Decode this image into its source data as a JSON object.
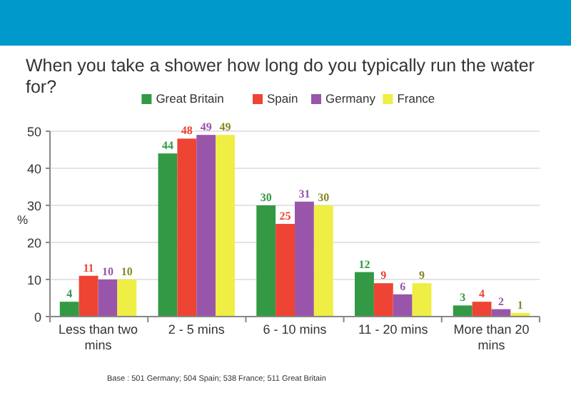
{
  "chart_data": {
    "type": "bar",
    "title": "When you take a shower how long do you typically run the water for?",
    "ylabel": "%",
    "categories": [
      "Less than two mins",
      "2 - 5 mins",
      "6 - 10 mins",
      "11 - 20 mins",
      "More than 20 mins"
    ],
    "series": [
      {
        "name": "Great Britain",
        "color": "#339944",
        "values": [
          4,
          44,
          30,
          12,
          3
        ]
      },
      {
        "name": "Spain",
        "color": "#ee4433",
        "values": [
          11,
          48,
          25,
          9,
          4
        ]
      },
      {
        "name": "Germany",
        "color": "#9955aa",
        "values": [
          10,
          49,
          31,
          6,
          2
        ]
      },
      {
        "name": "France",
        "color": "#eeee44",
        "values": [
          10,
          49,
          30,
          9,
          1
        ]
      }
    ],
    "ylim": [
      0,
      50
    ],
    "yticks": [
      0,
      10,
      20,
      30,
      40,
      50
    ],
    "grid": "y",
    "legend": "top",
    "data_labels": true,
    "annotations": [
      "Base : 501 Germany; 504 Spain; 538 France; 511 Great Britain"
    ]
  }
}
